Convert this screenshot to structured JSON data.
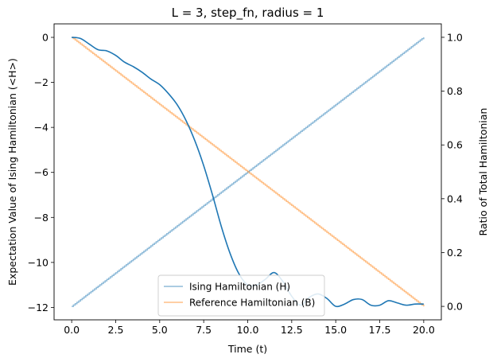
{
  "chart_data": {
    "type": "line",
    "title": "L = 3, step_fn, radius = 1",
    "xlabel": "Time (t)",
    "ylabel": "Expectation Value of Ising Hamiltonian (<H>)",
    "ylabel_right": "Ratio of Total Hamiltonian",
    "xlim": [
      -1,
      21
    ],
    "ylim": [
      -12.55,
      0.6
    ],
    "ylim_right": [
      -0.05,
      1.05
    ],
    "xticks": [
      0.0,
      2.5,
      5.0,
      7.5,
      10.0,
      12.5,
      15.0,
      17.5,
      20.0
    ],
    "xtick_labels": [
      "0.0",
      "2.5",
      "5.0",
      "7.5",
      "10.0",
      "12.5",
      "15.0",
      "17.5",
      "20.0"
    ],
    "yticks": [
      0,
      -2,
      -4,
      -6,
      -8,
      -10,
      -12
    ],
    "ytick_labels": [
      "0",
      "−2",
      "−4",
      "−6",
      "−8",
      "−10",
      "−12"
    ],
    "yticks_right": [
      0.0,
      0.2,
      0.4,
      0.6,
      0.8,
      1.0
    ],
    "ytick_labels_right": [
      "0.0",
      "0.2",
      "0.4",
      "0.6",
      "0.8",
      "1.0"
    ],
    "grid": false,
    "legend_position": "bottom-center",
    "expectation_series": {
      "color": "#1f77b4",
      "axis": "left",
      "x": [
        0,
        0.5,
        1,
        1.5,
        2,
        2.5,
        3,
        3.5,
        4,
        4.5,
        5,
        5.5,
        6,
        6.5,
        7,
        7.5,
        8,
        8.5,
        9,
        9.5,
        10,
        10.5,
        11,
        11.5,
        12,
        12.5,
        13,
        13.5,
        14,
        14.5,
        15,
        15.5,
        16,
        16.5,
        17,
        17.5,
        18,
        18.5,
        19,
        19.5,
        20
      ],
      "y": [
        0,
        -0.05,
        -0.3,
        -0.55,
        -0.6,
        -0.8,
        -1.1,
        -1.3,
        -1.55,
        -1.85,
        -2.1,
        -2.5,
        -3.0,
        -3.7,
        -4.6,
        -5.7,
        -7.0,
        -8.4,
        -9.6,
        -10.5,
        -11.0,
        -11.0,
        -10.75,
        -10.45,
        -10.85,
        -11.5,
        -11.9,
        -11.55,
        -11.4,
        -11.6,
        -11.95,
        -11.85,
        -11.65,
        -11.65,
        -11.9,
        -11.9,
        -11.7,
        -11.8,
        -11.9,
        -11.85,
        -11.85
      ]
    },
    "series": [
      {
        "name": "Ising Hamiltonian (H)",
        "color": "#1f77b4",
        "opacity": 0.5,
        "axis": "right",
        "step": true,
        "x": [
          0,
          20
        ],
        "y": [
          0.0,
          1.0
        ]
      },
      {
        "name": "Reference Hamiltonian (B)",
        "color": "#ff7f0e",
        "opacity": 0.5,
        "axis": "right",
        "step": true,
        "x": [
          0,
          20
        ],
        "y": [
          1.0,
          0.0
        ]
      }
    ]
  }
}
